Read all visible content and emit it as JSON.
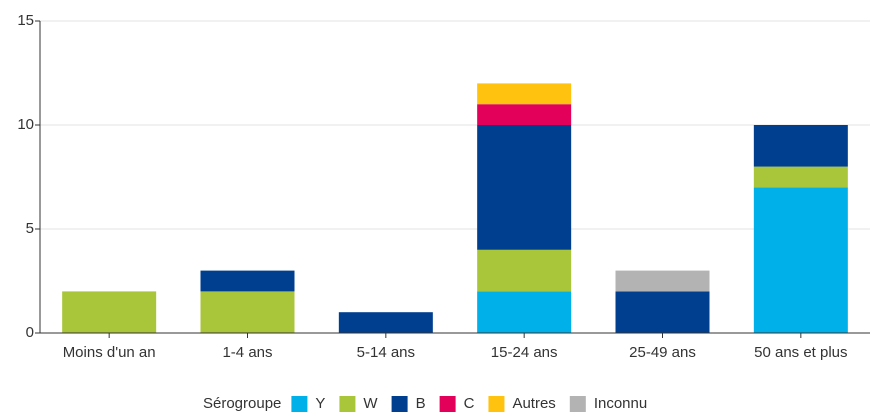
{
  "chart_data": {
    "type": "stacked_bar",
    "categories": [
      "Moins d'un an",
      "1-4 ans",
      "5-14 ans",
      "15-24 ans",
      "25-49 ans",
      "50 ans et plus"
    ],
    "series": [
      {
        "name": "Y",
        "color": "#00b0e8",
        "values": [
          0,
          0,
          0,
          2,
          0,
          7
        ]
      },
      {
        "name": "W",
        "color": "#a9c63b",
        "values": [
          2,
          2,
          0,
          2,
          0,
          1
        ]
      },
      {
        "name": "B",
        "color": "#003f8f",
        "values": [
          0,
          1,
          1,
          6,
          2,
          2
        ]
      },
      {
        "name": "C",
        "color": "#e2005a",
        "values": [
          0,
          0,
          0,
          1,
          0,
          0
        ]
      },
      {
        "name": "Autres",
        "color": "#ffc20e",
        "values": [
          0,
          0,
          0,
          1,
          0,
          0
        ]
      },
      {
        "name": "Inconnu",
        "color": "#b3b3b3",
        "values": [
          0,
          0,
          0,
          0,
          1,
          0
        ]
      }
    ],
    "legend_title": "Sérogroupe",
    "ylim": [
      0,
      15
    ],
    "yticks": [
      0,
      5,
      10,
      15
    ],
    "grid": true
  }
}
